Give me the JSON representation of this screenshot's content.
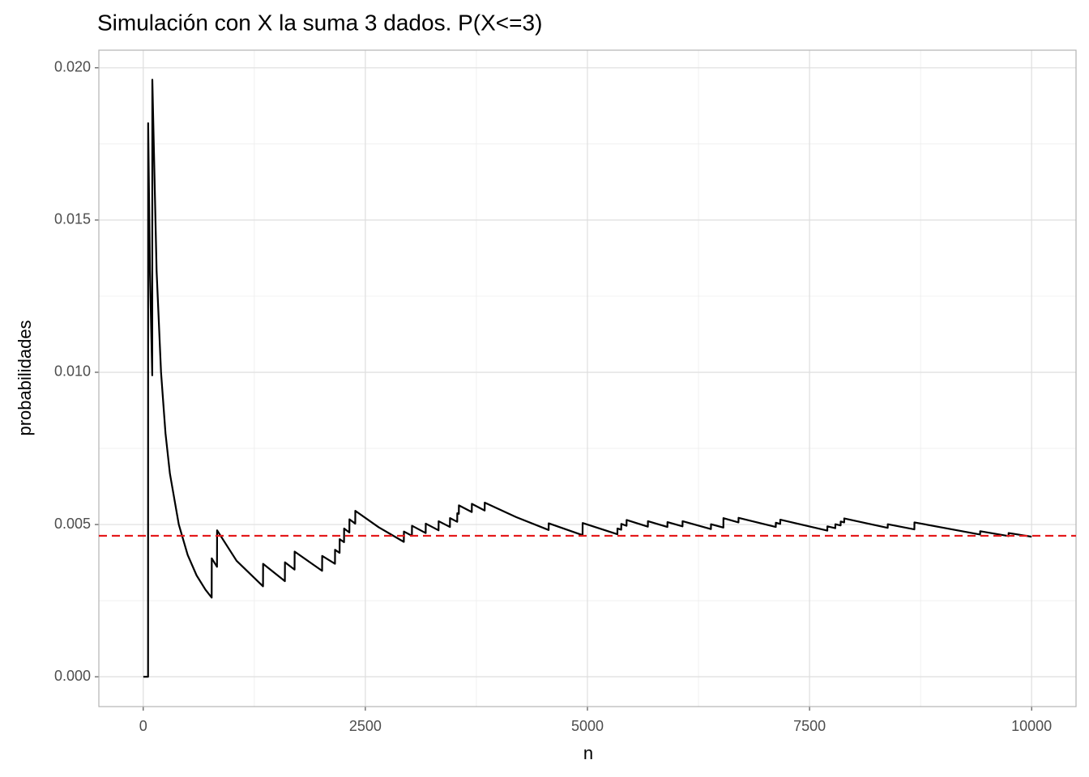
{
  "chart_data": {
    "type": "line",
    "title": "Simulación con X la suma 3 dados. P(X<=3)",
    "x_label": "n",
    "y_label": "probabilidades",
    "xlim": [
      -500,
      10500
    ],
    "ylim": [
      -0.00098,
      0.02058
    ],
    "xticks": [
      0,
      2500,
      5000,
      7500,
      10000
    ],
    "yticks": [
      {
        "value": 0,
        "label": "0.000"
      },
      {
        "value": 0.005,
        "label": "0.005"
      },
      {
        "value": 0.01,
        "label": "0.010"
      },
      {
        "value": 0.015,
        "label": "0.015"
      },
      {
        "value": 0.02,
        "label": "0.020"
      }
    ],
    "minor_xgrid": [
      1250,
      3750,
      6250,
      8750
    ],
    "minor_ygrid": [
      0.0025,
      0.0075,
      0.0125,
      0.0175
    ],
    "grid": true,
    "reference_line": {
      "y": 0.00463,
      "color": "#e41a1c",
      "style": "dashed"
    },
    "series": [
      {
        "color": "#000000",
        "x": [
          1,
          54,
          55,
          75,
          101,
          102,
          150,
          200,
          250,
          300,
          400,
          500,
          600,
          700,
          770,
          771,
          830,
          831,
          1050,
          1348,
          1349,
          1594,
          1595,
          1703,
          1704,
          2013,
          2014,
          2158,
          2159,
          2210,
          2211,
          2260,
          2261,
          2320,
          2321,
          2386,
          2387,
          2650,
          2933,
          2934,
          3024,
          3025,
          3179,
          3180,
          3324,
          3325,
          3452,
          3453,
          3534,
          3535,
          3552,
          3553,
          3698,
          3699,
          3843,
          3844,
          4200,
          4563,
          4564,
          4945,
          4946,
          5337,
          5338,
          5380,
          5381,
          5440,
          5441,
          5680,
          5681,
          5900,
          5901,
          6070,
          6071,
          6390,
          6391,
          6530,
          6531,
          6700,
          6701,
          7120,
          7121,
          7170,
          7171,
          7700,
          7701,
          7790,
          7791,
          7850,
          7851,
          7890,
          7891,
          8380,
          8381,
          8680,
          8681,
          9420,
          9421,
          9740,
          9741,
          10000
        ],
        "values": [
          0,
          0,
          0.01818,
          0.01333,
          0.0099,
          0.01961,
          0.01333,
          0.01,
          0.008,
          0.00667,
          0.005,
          0.004,
          0.00333,
          0.00286,
          0.0026,
          0.00389,
          0.00361,
          0.00481,
          0.00381,
          0.00297,
          0.00371,
          0.00314,
          0.00376,
          0.00352,
          0.00411,
          0.00348,
          0.00397,
          0.00371,
          0.00417,
          0.00407,
          0.00452,
          0.00442,
          0.00487,
          0.00474,
          0.00517,
          0.00503,
          0.00545,
          0.00491,
          0.00443,
          0.00477,
          0.00463,
          0.00496,
          0.00472,
          0.00503,
          0.00481,
          0.00511,
          0.00492,
          0.00521,
          0.00509,
          0.00537,
          0.00535,
          0.00563,
          0.00541,
          0.00568,
          0.00546,
          0.00572,
          0.00524,
          0.00482,
          0.00504,
          0.00465,
          0.00505,
          0.00468,
          0.00487,
          0.00483,
          0.00502,
          0.00496,
          0.00515,
          0.00493,
          0.00511,
          0.00492,
          0.00508,
          0.00494,
          0.00511,
          0.00485,
          0.00501,
          0.0049,
          0.00521,
          0.00507,
          0.00522,
          0.00492,
          0.00506,
          0.00502,
          0.00516,
          0.0048,
          0.00494,
          0.00488,
          0.00501,
          0.00497,
          0.0051,
          0.00507,
          0.0052,
          0.00489,
          0.00501,
          0.00484,
          0.00507,
          0.00467,
          0.00478,
          0.00462,
          0.00472,
          0.0046
        ]
      }
    ]
  }
}
